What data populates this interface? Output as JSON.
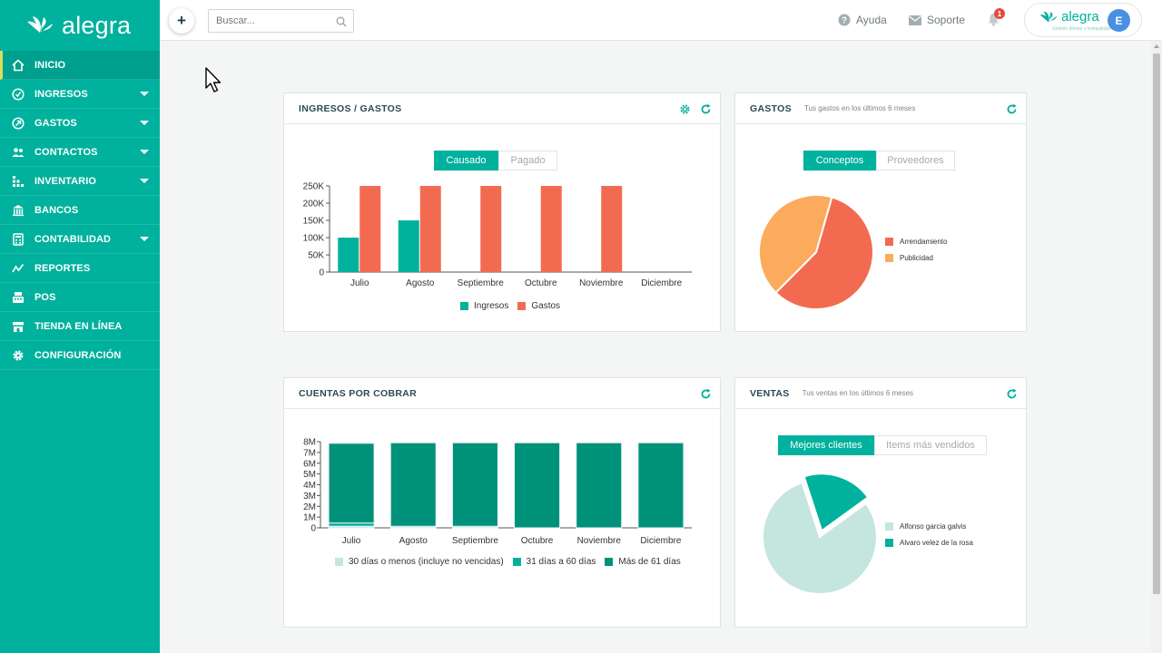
{
  "brand": {
    "name": "alegra",
    "tagline": "Gestión tiempo y tranquilidad",
    "color": "#00b19d"
  },
  "sidebar": {
    "items": [
      {
        "label": "INICIO",
        "icon": "home-icon",
        "active": true,
        "caret": false
      },
      {
        "label": "INGRESOS",
        "icon": "income-icon",
        "caret": true
      },
      {
        "label": "GASTOS",
        "icon": "expense-icon",
        "caret": true
      },
      {
        "label": "CONTACTOS",
        "icon": "contacts-icon",
        "caret": true
      },
      {
        "label": "INVENTARIO",
        "icon": "inventory-icon",
        "caret": true
      },
      {
        "label": "BANCOS",
        "icon": "bank-icon",
        "caret": false
      },
      {
        "label": "CONTABILIDAD",
        "icon": "accounting-icon",
        "caret": true
      },
      {
        "label": "REPORTES",
        "icon": "reports-icon",
        "caret": false
      },
      {
        "label": "POS",
        "icon": "pos-icon",
        "caret": false
      },
      {
        "label": "TIENDA EN LÍNEA",
        "icon": "store-icon",
        "caret": false
      },
      {
        "label": "CONFIGURACIÓN",
        "icon": "gear-icon",
        "caret": false
      }
    ]
  },
  "topbar": {
    "search_placeholder": "Buscar...",
    "help_label": "Ayuda",
    "support_label": "Soporte",
    "notifications_count": "1",
    "avatar_initial": "E"
  },
  "cards": {
    "ingresos_gastos": {
      "title": "INGRESOS / GASTOS",
      "toggle": [
        "Causado",
        "Pagado"
      ],
      "legend": [
        "Ingresos",
        "Gastos"
      ]
    },
    "gastos": {
      "title": "GASTOS",
      "subtitle": "Tus gastos en los últimos 6 meses",
      "toggle": [
        "Conceptos",
        "Proveedores"
      ],
      "legend": [
        "Arrendamiento",
        "Publicidad"
      ]
    },
    "cuentas": {
      "title": "CUENTAS POR COBRAR",
      "legend": [
        "30 días o menos (incluye no vencidas)",
        "31 días a 60 días",
        "Más de 61 días"
      ]
    },
    "ventas": {
      "title": "VENTAS",
      "subtitle": "Tus ventas en los últimos 6 meses",
      "toggle": [
        "Mejores clientes",
        "Items más vendidos"
      ],
      "legend": [
        "Alfonso garcia galvis",
        "Alvaro velez de la rosa"
      ]
    }
  },
  "chart_data": [
    {
      "id": "ingresos_gastos",
      "type": "bar",
      "categories": [
        "Julio",
        "Agosto",
        "Septiembre",
        "Octubre",
        "Noviembre",
        "Diciembre"
      ],
      "series": [
        {
          "name": "Ingresos",
          "color": "#00b19d",
          "values": [
            100000,
            150000,
            0,
            0,
            0,
            0
          ]
        },
        {
          "name": "Gastos",
          "color": "#f26b51",
          "values": [
            250000,
            250000,
            250000,
            250000,
            250000,
            0
          ]
        }
      ],
      "yticks": [
        "0",
        "50K",
        "100K",
        "150K",
        "200K",
        "250K"
      ],
      "ylim": [
        0,
        250000
      ],
      "legend_position": "bottom"
    },
    {
      "id": "gastos",
      "type": "pie",
      "slices": [
        {
          "name": "Arrendamiento",
          "color": "#f26b51",
          "value": 58
        },
        {
          "name": "Publicidad",
          "color": "#fcab5c",
          "value": 42
        }
      ],
      "legend_position": "right"
    },
    {
      "id": "cuentas",
      "type": "bar",
      "stacked": true,
      "categories": [
        "Julio",
        "Agosto",
        "Septiembre",
        "Octubre",
        "Noviembre",
        "Diciembre"
      ],
      "series": [
        {
          "name": "30 días o menos (incluye no vencidas)",
          "color": "#c4e6df",
          "values": [
            0.15,
            0.05,
            0.05,
            0,
            0,
            0
          ]
        },
        {
          "name": "31 días a 60 días",
          "color": "#00b19d",
          "values": [
            0.3,
            0.1,
            0.1,
            0,
            0,
            0
          ]
        },
        {
          "name": "Más de 61 días",
          "color": "#00917b",
          "values": [
            7.4,
            7.75,
            7.75,
            7.9,
            7.9,
            7.9
          ]
        }
      ],
      "yticks": [
        "0",
        "1M",
        "2M",
        "3M",
        "4M",
        "5M",
        "6M",
        "7M",
        "8M"
      ],
      "ylim": [
        0,
        8
      ],
      "yunit": "M",
      "legend_position": "bottom"
    },
    {
      "id": "ventas",
      "type": "pie",
      "slices": [
        {
          "name": "Alfonso garcia galvis",
          "color": "#c4e6df",
          "value": 80
        },
        {
          "name": "Alvaro velez de la rosa",
          "color": "#00b19d",
          "value": 20
        }
      ],
      "legend_position": "right"
    }
  ]
}
